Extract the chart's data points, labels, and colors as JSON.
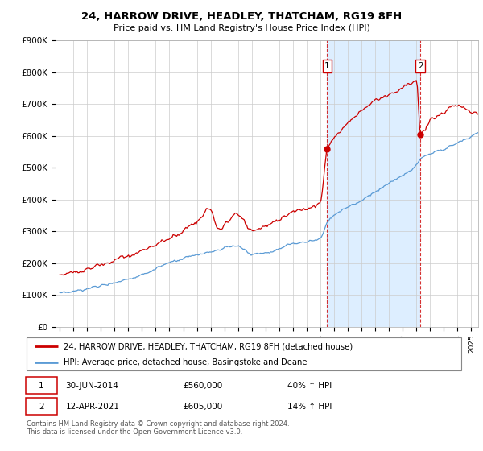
{
  "title": "24, HARROW DRIVE, HEADLEY, THATCHAM, RG19 8FH",
  "subtitle": "Price paid vs. HM Land Registry's House Price Index (HPI)",
  "ylim": [
    0,
    900000
  ],
  "yticks": [
    0,
    100000,
    200000,
    300000,
    400000,
    500000,
    600000,
    700000,
    800000,
    900000
  ],
  "ytick_labels": [
    "£0",
    "£100K",
    "£200K",
    "£300K",
    "£400K",
    "£500K",
    "£600K",
    "£700K",
    "£800K",
    "£900K"
  ],
  "red_color": "#cc0000",
  "blue_color": "#5b9bd5",
  "shade_color": "#ddeeff",
  "sale1_t": 19.5,
  "sale1_price": 560000,
  "sale2_t": 26.3,
  "sale2_price": 605000,
  "legend_red": "24, HARROW DRIVE, HEADLEY, THATCHAM, RG19 8FH (detached house)",
  "legend_blue": "HPI: Average price, detached house, Basingstoke and Deane",
  "annotation1_date": "30-JUN-2014",
  "annotation1_price": "£560,000",
  "annotation1_hpi": "40% ↑ HPI",
  "annotation2_date": "12-APR-2021",
  "annotation2_price": "£605,000",
  "annotation2_hpi": "14% ↑ HPI",
  "footer": "Contains HM Land Registry data © Crown copyright and database right 2024.\nThis data is licensed under the Open Government Licence v3.0.",
  "year_start": 1995,
  "year_end": 2025
}
